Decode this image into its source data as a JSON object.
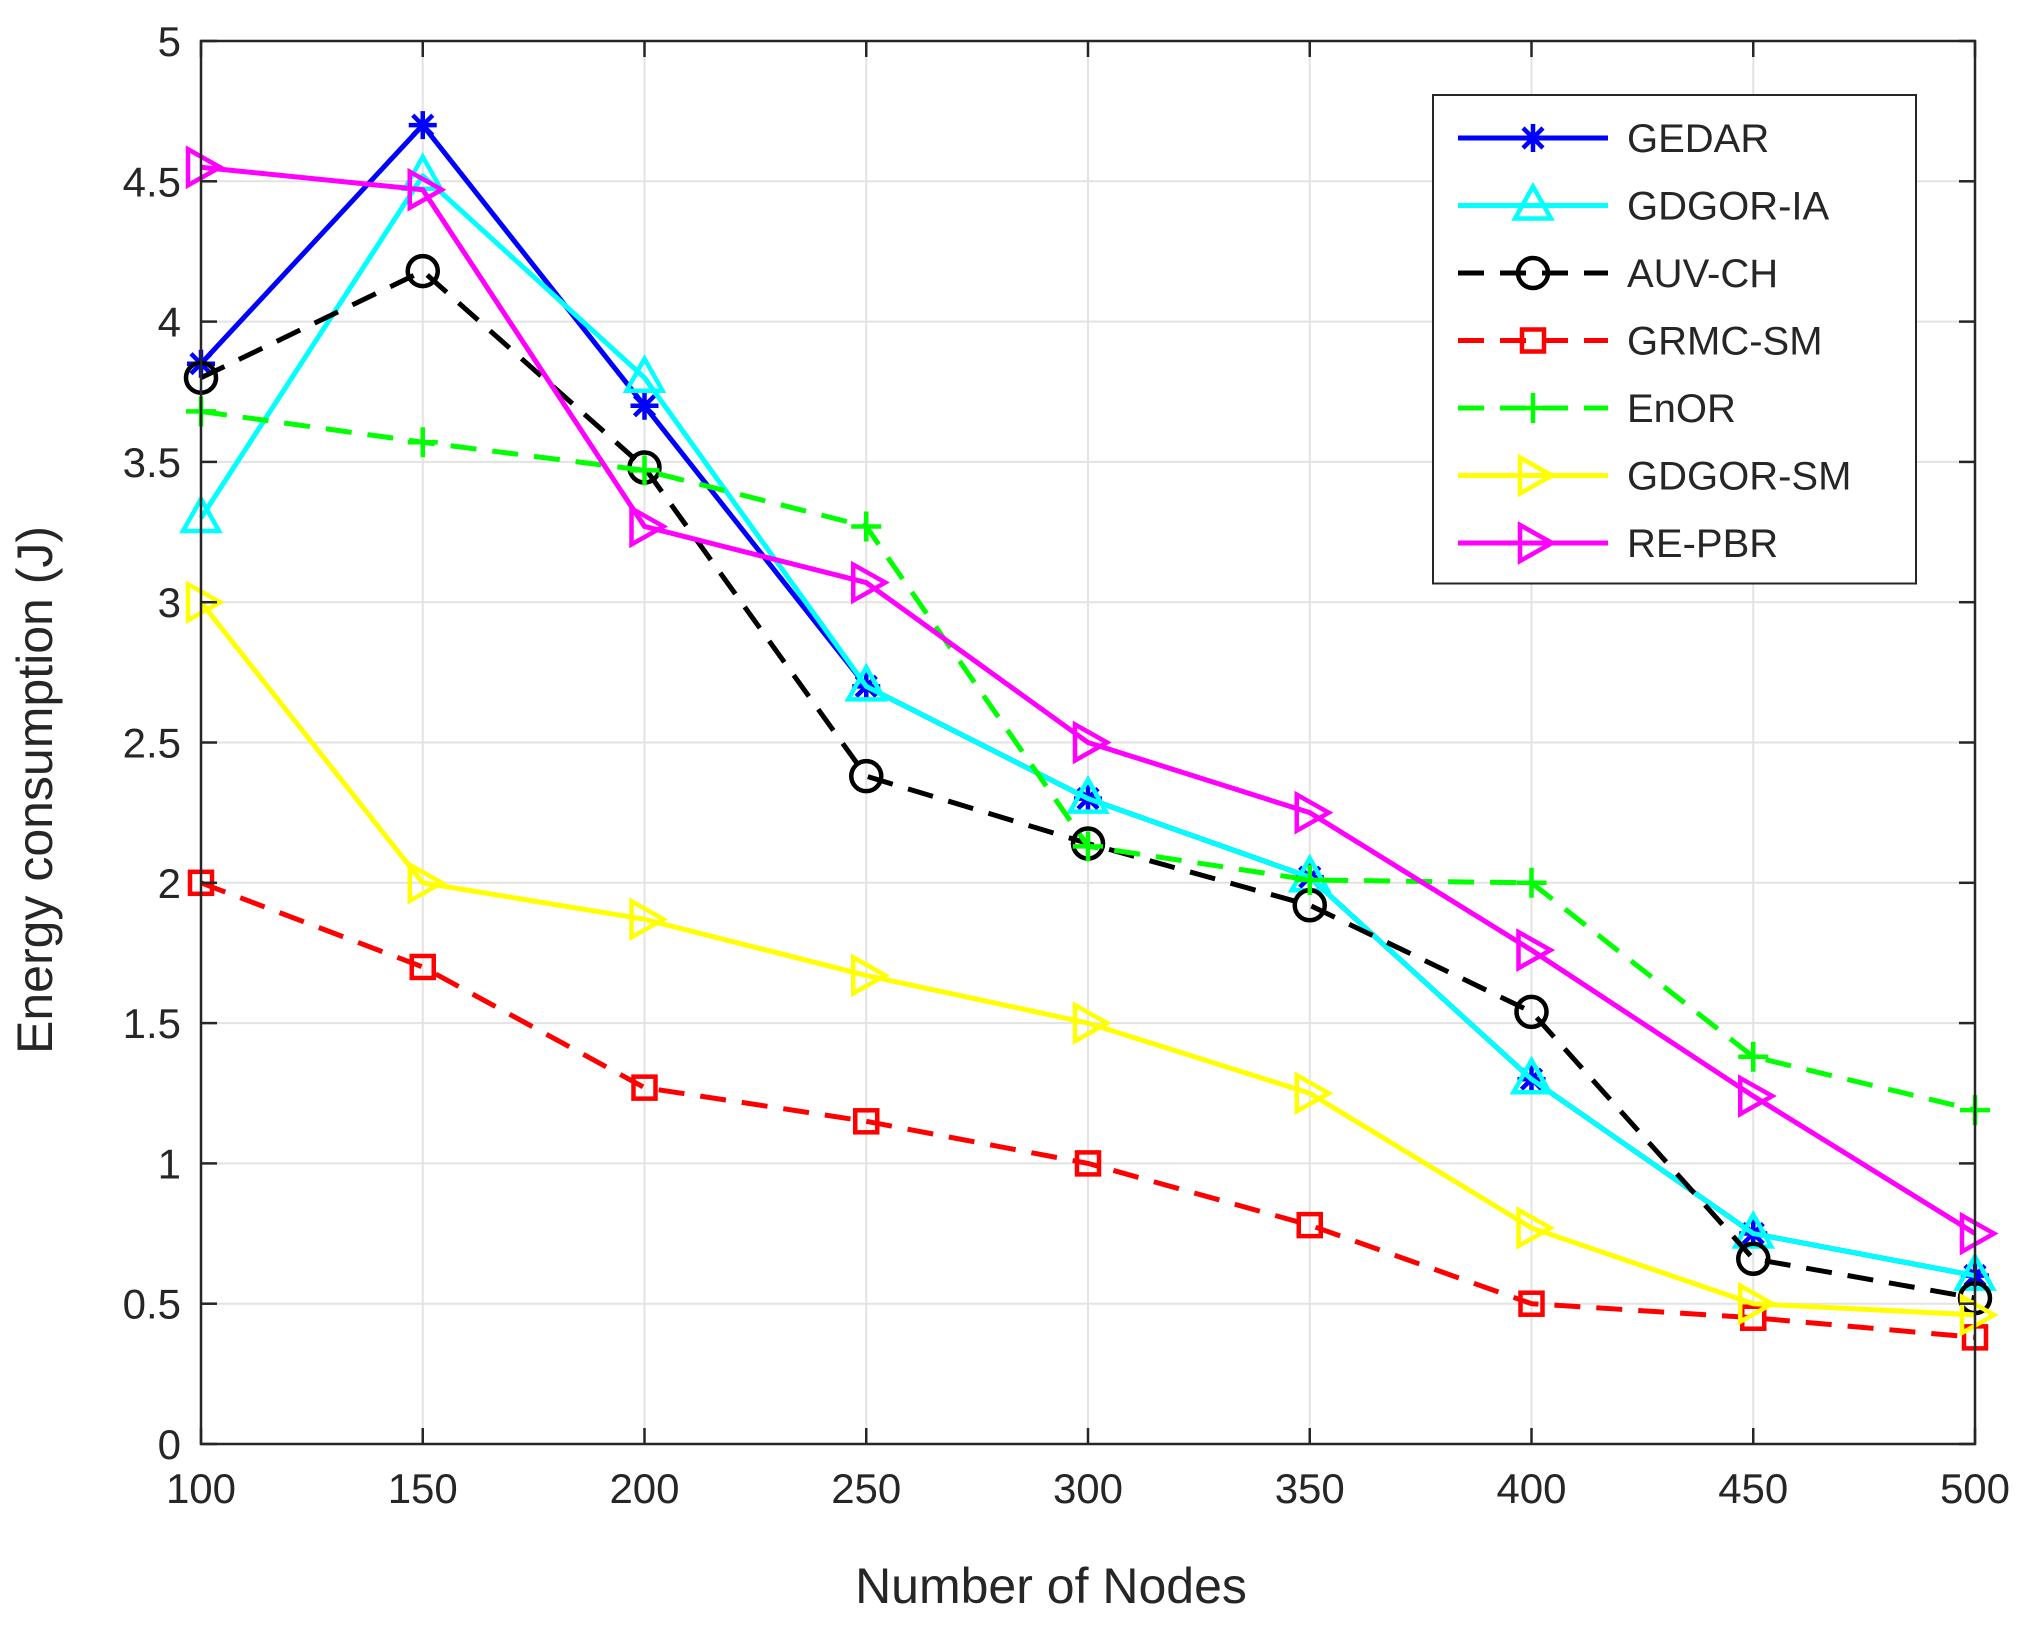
{
  "chart_data": {
    "type": "line",
    "title": "",
    "xlabel": "Number of Nodes",
    "ylabel": "Energy consumption (J)",
    "xlim": [
      100,
      500
    ],
    "ylim": [
      0,
      5
    ],
    "xticks": [
      100,
      150,
      200,
      250,
      300,
      350,
      400,
      450,
      500
    ],
    "yticks": [
      0,
      0.5,
      1,
      1.5,
      2,
      2.5,
      3,
      3.5,
      4,
      4.5,
      5
    ],
    "xtick_labels": [
      "100",
      "150",
      "200",
      "250",
      "300",
      "350",
      "400",
      "450",
      "500"
    ],
    "ytick_labels": [
      "0",
      "0.5",
      "1",
      "1.5",
      "2",
      "2.5",
      "3",
      "3.5",
      "4",
      "4.5",
      "5"
    ],
    "grid": true,
    "legend_position": "top-right",
    "x": [
      100,
      150,
      200,
      250,
      300,
      350,
      400,
      450,
      500
    ],
    "series": [
      {
        "name": "GEDAR",
        "color": "#0000ff",
        "dash": "solid",
        "marker": "asterisk",
        "values": [
          3.85,
          4.7,
          3.7,
          2.7,
          2.3,
          2.02,
          1.3,
          0.75,
          0.6
        ]
      },
      {
        "name": "GDGOR-IA",
        "color": "#00ffff",
        "dash": "solid",
        "marker": "triangle-up",
        "values": [
          3.3,
          4.52,
          3.8,
          2.7,
          2.3,
          2.02,
          1.3,
          0.75,
          0.6
        ]
      },
      {
        "name": "AUV-CH",
        "color": "#000000",
        "dash": "dashed",
        "marker": "circle",
        "values": [
          3.8,
          4.18,
          3.48,
          2.38,
          2.14,
          1.92,
          1.54,
          0.66,
          0.52
        ]
      },
      {
        "name": "GRMC-SM",
        "color": "#ff0000",
        "dash": "dashed",
        "marker": "square",
        "values": [
          2.0,
          1.7,
          1.27,
          1.15,
          1.0,
          0.78,
          0.5,
          0.45,
          0.38
        ]
      },
      {
        "name": "EnOR",
        "color": "#00ff00",
        "dash": "dashed",
        "marker": "plus",
        "values": [
          3.68,
          3.57,
          3.47,
          3.27,
          2.13,
          2.01,
          2.0,
          1.38,
          1.19
        ]
      },
      {
        "name": "GDGOR-SM",
        "color": "#ffff00",
        "dash": "solid",
        "marker": "triangle-right",
        "values": [
          3.0,
          2.0,
          1.87,
          1.67,
          1.5,
          1.25,
          0.77,
          0.5,
          0.46
        ]
      },
      {
        "name": "RE-PBR",
        "color": "#ff00ff",
        "dash": "solid",
        "marker": "triangle-right",
        "values": [
          4.55,
          4.47,
          3.27,
          3.07,
          2.5,
          2.25,
          1.76,
          1.24,
          0.75
        ]
      }
    ]
  }
}
